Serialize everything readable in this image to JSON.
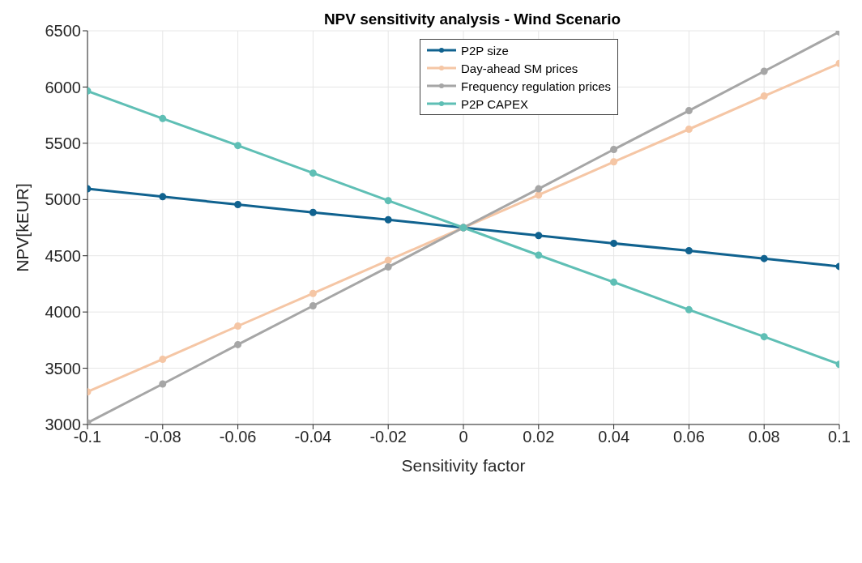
{
  "chart_data": {
    "type": "line",
    "title": "NPV sensitivity analysis - Wind Scenario",
    "xlabel": "Sensitivity factor",
    "ylabel": "NPV[kEUR]",
    "x": [
      -0.1,
      -0.08,
      -0.06,
      -0.04,
      -0.02,
      0,
      0.02,
      0.04,
      0.06,
      0.08,
      0.1
    ],
    "series": [
      {
        "name": "P2P size",
        "color": "#10628f",
        "values": [
          5095,
          5025,
          4955,
          4885,
          4820,
          4750,
          4680,
          4610,
          4545,
          4475,
          4405
        ]
      },
      {
        "name": "Day-ahead SM prices",
        "color": "#f5c6a5",
        "values": [
          3290,
          3580,
          3875,
          4165,
          4460,
          4750,
          5040,
          5335,
          5625,
          5920,
          6210
        ]
      },
      {
        "name": "Frequency regulation prices",
        "color": "#a6a6a6",
        "values": [
          3015,
          3360,
          3710,
          4055,
          4400,
          4750,
          5095,
          5445,
          5790,
          6140,
          6490
        ]
      },
      {
        "name": "P2P CAPEX",
        "color": "#5fbfb5",
        "values": [
          5965,
          5720,
          5480,
          5235,
          4990,
          4750,
          4505,
          4265,
          4020,
          3780,
          3535
        ]
      }
    ],
    "xlim": [
      -0.1,
      0.1
    ],
    "xticks": [
      -0.1,
      -0.08,
      -0.06,
      -0.04,
      -0.02,
      0,
      0.02,
      0.04,
      0.06,
      0.08,
      0.1
    ],
    "ylim": [
      3000,
      6500
    ],
    "yticks": [
      3000,
      3500,
      4000,
      4500,
      5000,
      5500,
      6000,
      6500
    ],
    "grid": true,
    "legend": "top",
    "marker": "circle",
    "line_style": "solid"
  }
}
